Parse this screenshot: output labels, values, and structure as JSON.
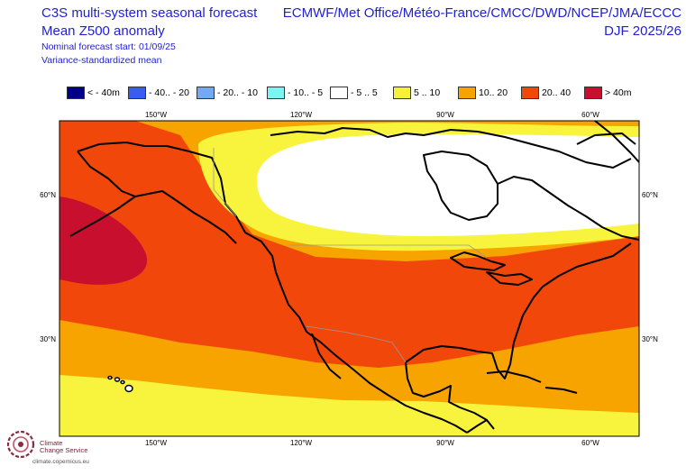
{
  "header": {
    "left_title_1": "C3S multi-system seasonal forecast",
    "left_title_2": "Mean Z500 anomaly",
    "nominal_start": "Nominal forecast start: 01/09/25",
    "subtitle": "Variance-standardized mean",
    "right_title": "ECMWF/Met Office/Météo-France/CMCC/DWD/NCEP/JMA/ECCC",
    "season": "DJF 2025/26"
  },
  "legend": {
    "items": [
      {
        "label": "< - 40m",
        "color": "#00008b"
      },
      {
        "label": "- 40.. - 20",
        "color": "#3a5cf0"
      },
      {
        "label": "- 20.. - 10",
        "color": "#74a8f0"
      },
      {
        "label": "- 10.. - 5",
        "color": "#7ef3f3"
      },
      {
        "label": "- 5 .. 5",
        "color": "#ffffff"
      },
      {
        "label": "5 .. 10",
        "color": "#f7f03a"
      },
      {
        "label": "10.. 20",
        "color": "#f6a400"
      },
      {
        "label": "20.. 40",
        "color": "#f2470a"
      },
      {
        "label": ">  40m",
        "color": "#c8102e"
      }
    ]
  },
  "map": {
    "lon_labels": [
      "150°W",
      "120°W",
      "90°W",
      "60°W"
    ],
    "lat_labels": [
      "60°N",
      "30°N"
    ],
    "field_colors": {
      "yellow": "#f8f33c",
      "orange": "#f7a300",
      "red_orange": "#f2470a",
      "dark_red": "#c8102e",
      "white": "#ffffff"
    }
  },
  "branding": {
    "org_line_1": "Climate",
    "org_line_2": "Change Service",
    "url": "climate.copernicus.eu"
  }
}
